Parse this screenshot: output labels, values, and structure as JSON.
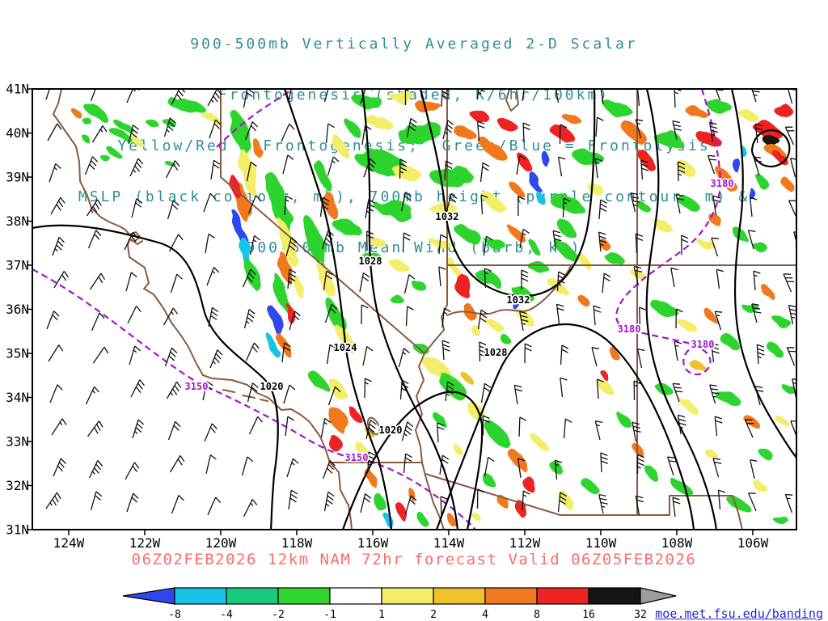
{
  "title": {
    "lines": [
      "900-500mb Vertically Averaged 2-D Scalar",
      "Frontogenesis (shaded, K/6hr/100km)",
      "Yellow/Red = Frontogenesis;  Green/Blue = Frontolysis",
      "MSLP (black contour, mb), 700mb height (purple contour, m) &",
      "900-500mb Mean Wind (barb, kt)"
    ],
    "color": "#2e8f94"
  },
  "axes": {
    "lat": [
      "41N",
      "40N",
      "39N",
      "38N",
      "37N",
      "36N",
      "35N",
      "34N",
      "33N",
      "32N",
      "31N"
    ],
    "lon": [
      "124W",
      "122W",
      "120W",
      "118W",
      "116W",
      "114W",
      "112W",
      "110W",
      "108W",
      "106W"
    ]
  },
  "contour_labels": {
    "mslp": [
      "1020",
      "1020",
      "1024",
      "1028",
      "1028",
      "1032",
      "1032"
    ],
    "height": [
      "3150",
      "3150",
      "3180",
      "3180",
      "3180"
    ]
  },
  "caption": {
    "text": "06Z02FEB2026 12km NAM 72hr forecast Valid 06Z05FEB2026",
    "color": "#fa6d6d"
  },
  "colorbar": {
    "ticks": [
      "-8",
      "-4",
      "-2",
      "-1",
      "1",
      "2",
      "4",
      "8",
      "16",
      "32"
    ],
    "cell_colors": [
      "#17c4e8",
      "#19c97e",
      "#2fd42f",
      "#ffffff",
      "#f2ee68",
      "#eec22c",
      "#f0791f",
      "#ee2421",
      "#141414"
    ],
    "arrow_left_color": "#2e47ee",
    "arrow_right_color": "#9b9b9b"
  },
  "plot_colors": {
    "mslp_contour": "#000000",
    "height_contour": "#a812cf",
    "geography": "#8a5a40"
  },
  "link": {
    "text": "moe.met.fsu.edu/banding",
    "color": "#2727cf"
  }
}
